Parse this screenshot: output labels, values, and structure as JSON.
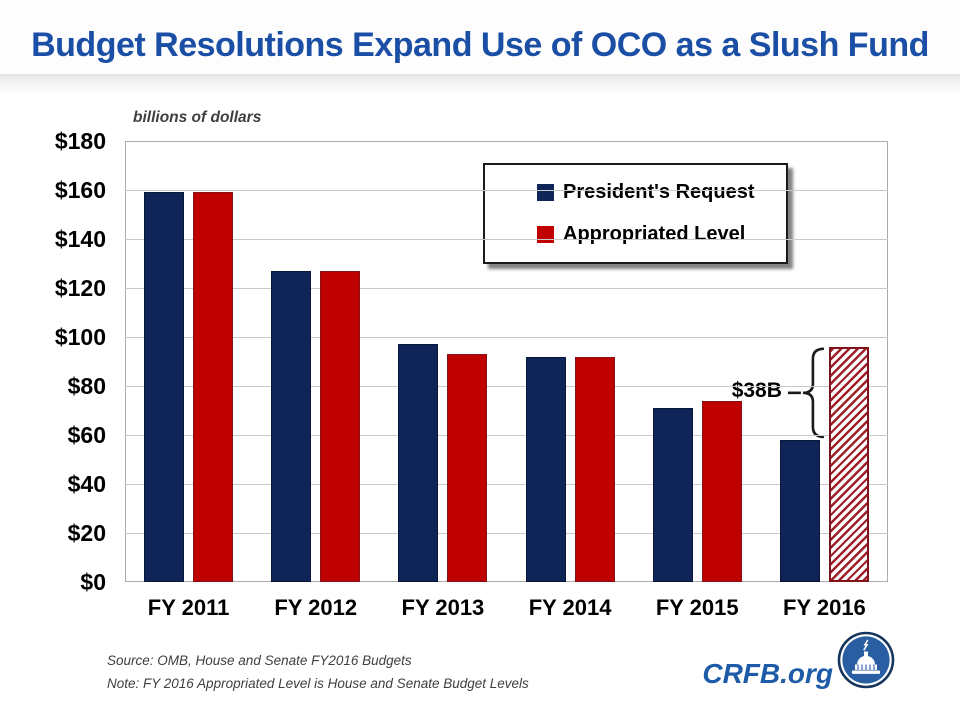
{
  "page": {
    "title": "Budget Resolutions Expand Use of OCO as a Slush Fund"
  },
  "chart_data": {
    "type": "bar",
    "title": "Budget Resolutions Expand Use of OCO as a Slush Fund",
    "units_label": "billions of dollars",
    "categories": [
      "FY 2011",
      "FY 2012",
      "FY 2013",
      "FY 2014",
      "FY 2015",
      "FY 2016"
    ],
    "series": [
      {
        "name": "President's Request",
        "color": "#0F2457",
        "border_color": "#0A173B",
        "values": [
          159,
          127,
          97,
          92,
          71,
          58
        ]
      },
      {
        "name": "Appropriated Level",
        "color": "#C00000",
        "border_color": "#7F1318",
        "values": [
          159,
          127,
          93,
          92,
          74,
          96
        ],
        "hatched": [
          false,
          false,
          false,
          false,
          false,
          true
        ],
        "hatch_stripe_color": "#9E2028",
        "hatch_bg": "#FFFFFF"
      }
    ],
    "ylim": [
      0,
      180
    ],
    "ytick_step": 20,
    "yticks": [
      {
        "value": 180,
        "label": "$180"
      },
      {
        "value": 160,
        "label": "$160"
      },
      {
        "value": 140,
        "label": "$140"
      },
      {
        "value": 120,
        "label": "$120"
      },
      {
        "value": 100,
        "label": "$100"
      },
      {
        "value": 80,
        "label": "$80"
      },
      {
        "value": 60,
        "label": "$60"
      },
      {
        "value": 40,
        "label": "$40"
      },
      {
        "value": 20,
        "label": "$20"
      },
      {
        "value": 0,
        "label": "$0"
      }
    ],
    "grid": true,
    "legend_position": "inside-top-right",
    "annotation": {
      "text": "$38B"
    }
  },
  "footer": {
    "source": "Source: OMB, House and Senate FY2016  Budgets",
    "note": "Note: FY 2016  Appropriated Level is House and Senate Budget Levels",
    "brand": "CRFB.org"
  },
  "colors": {
    "title": "#1B4FA5",
    "brand": "#1D5BA8",
    "grid": "#C9C9C9",
    "plot_border": "#ACACAC",
    "annotation_ink": "#1a1a1a"
  }
}
